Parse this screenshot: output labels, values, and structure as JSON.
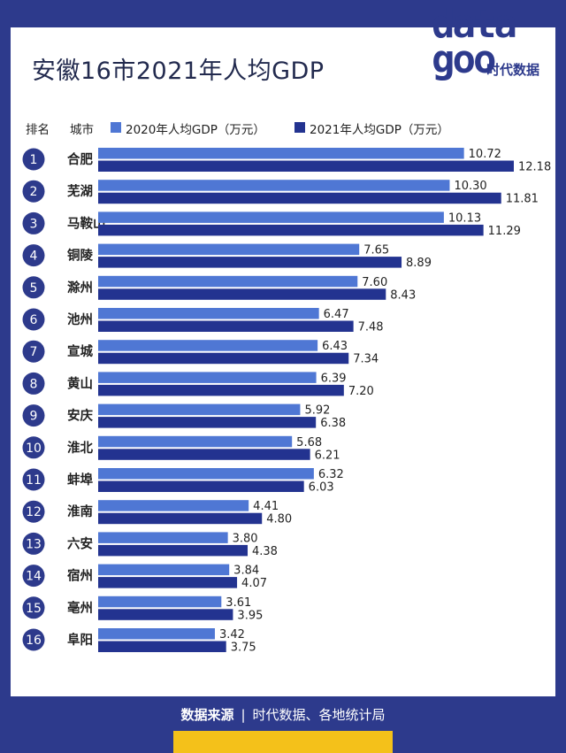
{
  "header": {
    "title": "安徽16市2021年人均GDP"
  },
  "logo": {
    "word_top": "data",
    "word_bottom": "goo",
    "sub": "时代数据"
  },
  "legend": {
    "rank_label": "排名",
    "city_label": "城市",
    "series1": "2020年人均GDP（万元）",
    "series2": "2021年人均GDP（万元）"
  },
  "footer": {
    "label": "数据来源",
    "divider": "|",
    "source": "时代数据、各地统计局"
  },
  "colors": {
    "background": "#2d3a8c",
    "series2020": "#4f77d4",
    "series2021": "#233390",
    "accent": "#f4c11a"
  },
  "chart_data": {
    "type": "bar",
    "orientation": "horizontal",
    "title": "安徽16市2021年人均GDP",
    "unit": "万元",
    "xlim": [
      0,
      12.18
    ],
    "ranks": [
      "1",
      "2",
      "3",
      "4",
      "5",
      "6",
      "7",
      "8",
      "9",
      "10",
      "11",
      "12",
      "13",
      "14",
      "15",
      "16"
    ],
    "categories": [
      "合肥",
      "芜湖",
      "马鞍山",
      "铜陵",
      "滁州",
      "池州",
      "宣城",
      "黄山",
      "安庆",
      "淮北",
      "蚌埠",
      "淮南",
      "六安",
      "宿州",
      "亳州",
      "阜阳"
    ],
    "series": [
      {
        "name": "2020年人均GDP（万元）",
        "values": [
          10.72,
          10.3,
          10.13,
          7.65,
          7.6,
          6.47,
          6.43,
          6.39,
          5.92,
          5.68,
          6.32,
          4.41,
          3.8,
          3.84,
          3.61,
          3.42
        ],
        "labels": [
          "10.72",
          "10.30",
          "10.13",
          "7.65",
          "7.60",
          "6.47",
          "6.43",
          "6.39",
          "5.92",
          "5.68",
          "6.32",
          "4.41",
          "3.80",
          "3.84",
          "3.61",
          "3.42"
        ]
      },
      {
        "name": "2021年人均GDP（万元）",
        "values": [
          12.18,
          11.81,
          11.29,
          8.89,
          8.43,
          7.48,
          7.34,
          7.2,
          6.38,
          6.21,
          6.03,
          4.8,
          4.38,
          4.07,
          3.95,
          3.75
        ],
        "labels": [
          "12.18",
          "11.81",
          "11.29",
          "8.89",
          "8.43",
          "7.48",
          "7.34",
          "7.20",
          "6.38",
          "6.21",
          "6.03",
          "4.80",
          "4.38",
          "4.07",
          "3.95",
          "3.75"
        ]
      }
    ]
  }
}
